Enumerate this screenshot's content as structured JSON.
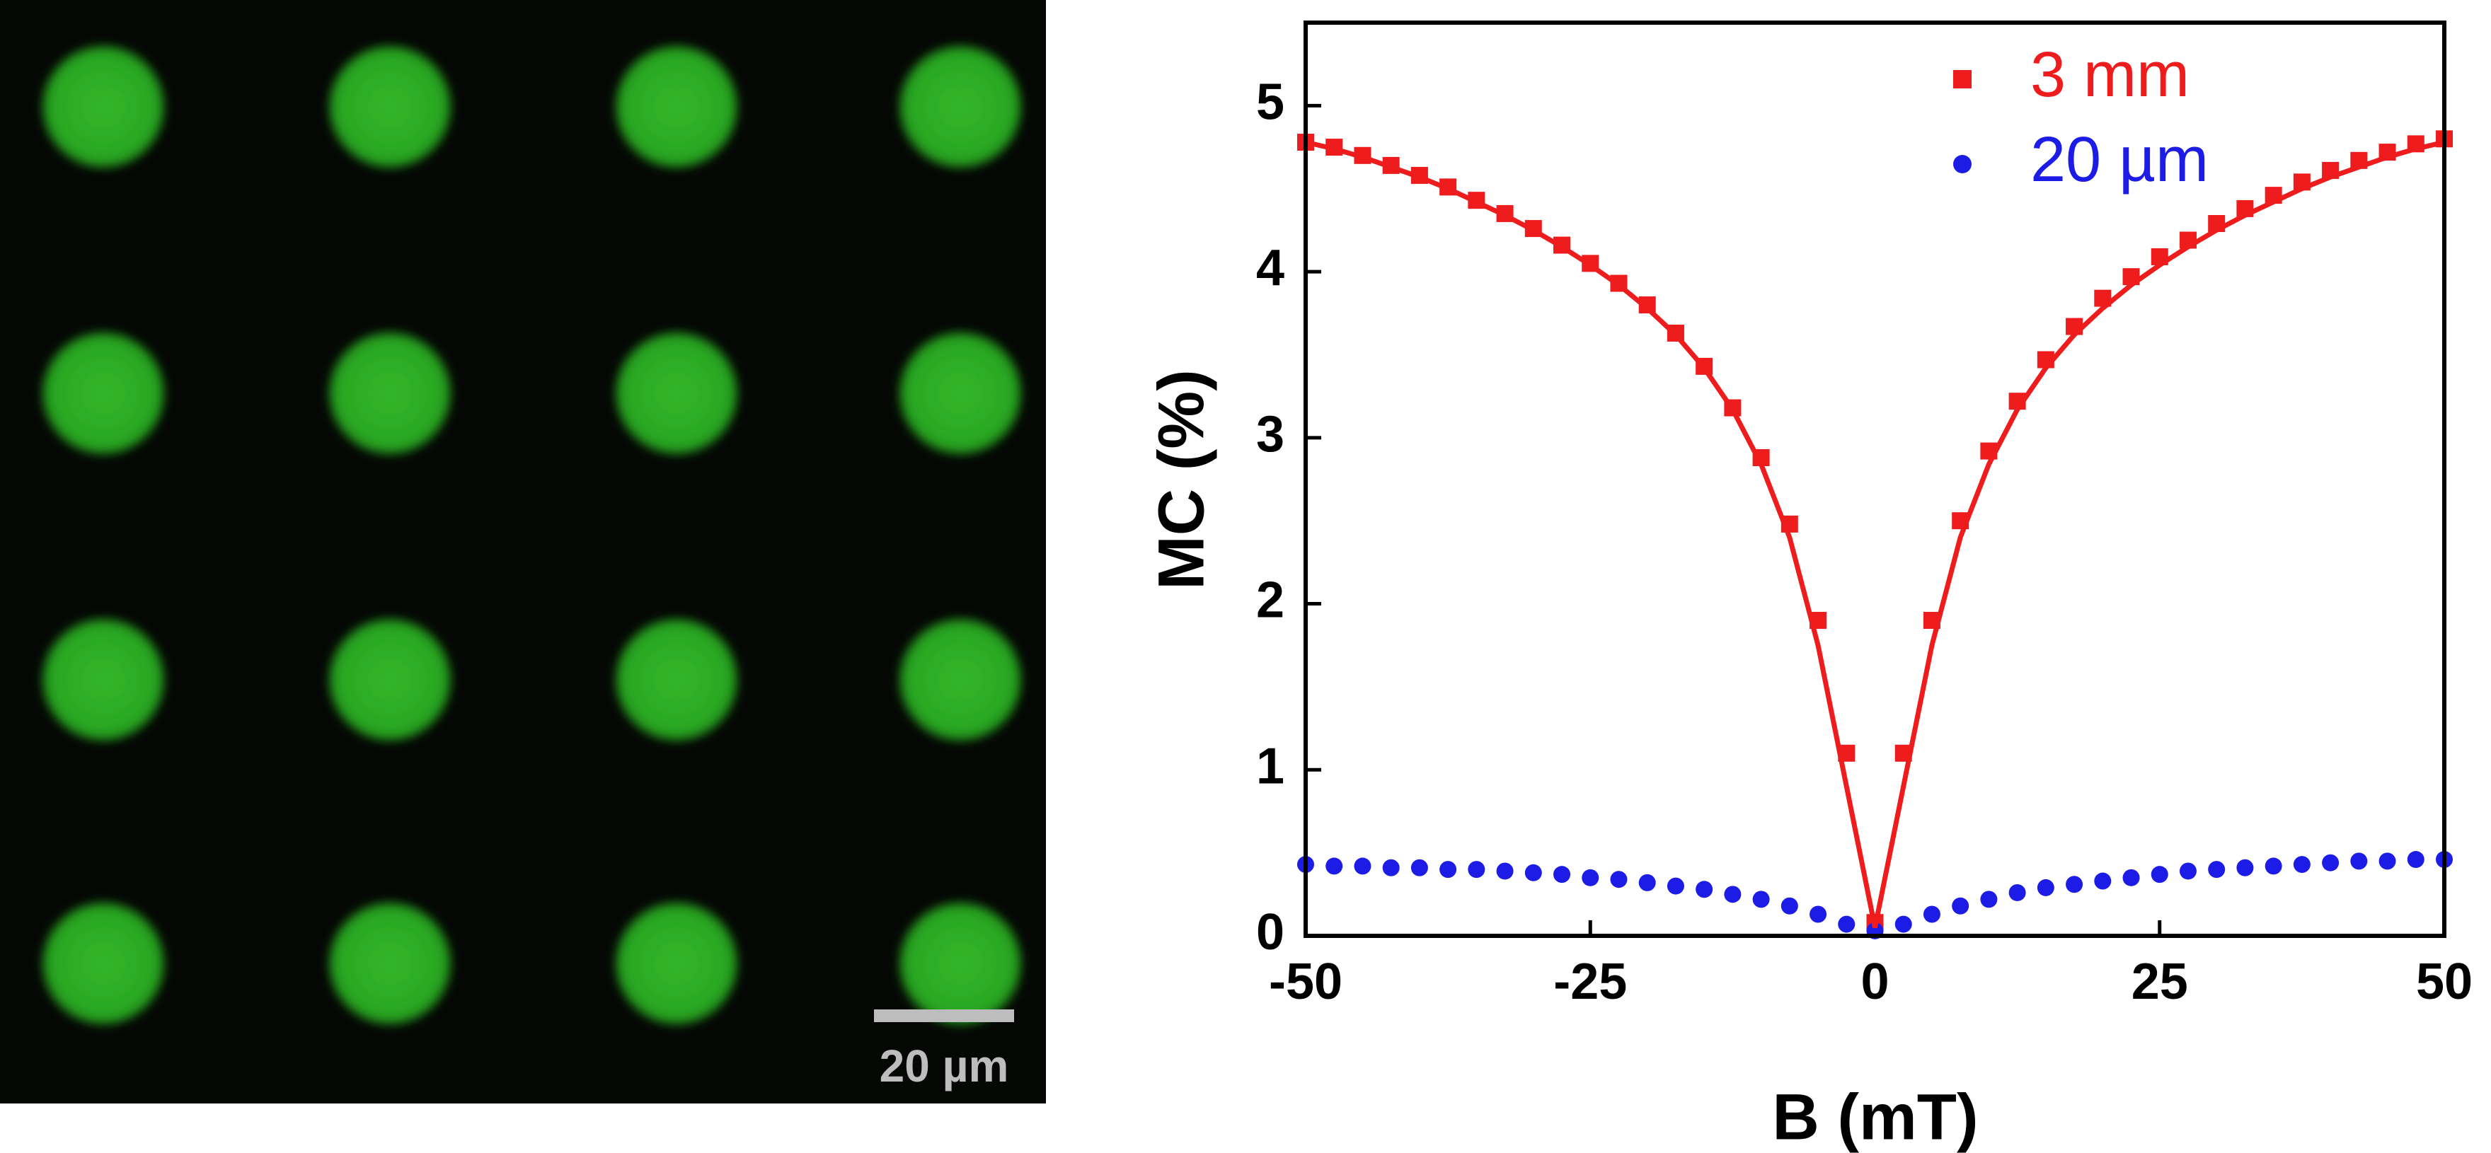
{
  "image": {
    "scale_bar_label": "20 µm"
  },
  "chart_data": {
    "type": "scatter",
    "xlabel": "B (mT)",
    "ylabel": "MC (%)",
    "xlim": [
      -50,
      50
    ],
    "xticks": [
      -50,
      -25,
      0,
      25,
      50
    ],
    "ylim": [
      0,
      5.5
    ],
    "yticks": [
      0,
      1,
      2,
      3,
      4,
      5
    ],
    "x": [
      -50,
      -47.5,
      -45,
      -42.5,
      -40,
      -37.5,
      -35,
      -32.5,
      -30,
      -27.5,
      -25,
      -22.5,
      -20,
      -17.5,
      -15,
      -12.5,
      -10,
      -7.5,
      -5,
      -2.5,
      0,
      2.5,
      5,
      7.5,
      10,
      12.5,
      15,
      17.5,
      20,
      22.5,
      25,
      27.5,
      30,
      32.5,
      35,
      37.5,
      40,
      42.5,
      45,
      47.5,
      50
    ],
    "series": [
      {
        "name": "3 mm",
        "color": "#ee1c1c",
        "marker": "square",
        "values": [
          4.78,
          4.75,
          4.7,
          4.64,
          4.58,
          4.51,
          4.43,
          4.35,
          4.26,
          4.16,
          4.05,
          3.93,
          3.8,
          3.63,
          3.43,
          3.18,
          2.88,
          2.48,
          1.9,
          1.1,
          0.08,
          1.1,
          1.9,
          2.5,
          2.92,
          3.22,
          3.47,
          3.67,
          3.84,
          3.97,
          4.09,
          4.19,
          4.29,
          4.38,
          4.46,
          4.54,
          4.61,
          4.67,
          4.72,
          4.77,
          4.8
        ]
      },
      {
        "name": "20 µm",
        "color": "#1c1ce6",
        "marker": "circle",
        "values": [
          0.43,
          0.42,
          0.42,
          0.41,
          0.41,
          0.4,
          0.4,
          0.39,
          0.38,
          0.37,
          0.35,
          0.34,
          0.32,
          0.3,
          0.28,
          0.25,
          0.22,
          0.18,
          0.13,
          0.07,
          0.03,
          0.07,
          0.13,
          0.18,
          0.22,
          0.26,
          0.29,
          0.31,
          0.33,
          0.35,
          0.37,
          0.39,
          0.4,
          0.41,
          0.42,
          0.43,
          0.44,
          0.45,
          0.45,
          0.46,
          0.46
        ]
      },
      {
        "color": "#ee1c1c",
        "marker": "line",
        "values": [
          4.78,
          4.74,
          4.69,
          4.63,
          4.57,
          4.5,
          4.42,
          4.34,
          4.25,
          4.15,
          4.04,
          3.92,
          3.78,
          3.62,
          3.42,
          3.17,
          2.84,
          2.4,
          1.75,
          0.9,
          0.05,
          0.9,
          1.75,
          2.4,
          2.84,
          3.17,
          3.42,
          3.62,
          3.78,
          3.92,
          4.04,
          4.15,
          4.25,
          4.34,
          4.42,
          4.5,
          4.57,
          4.63,
          4.69,
          4.74,
          4.78
        ]
      }
    ]
  }
}
